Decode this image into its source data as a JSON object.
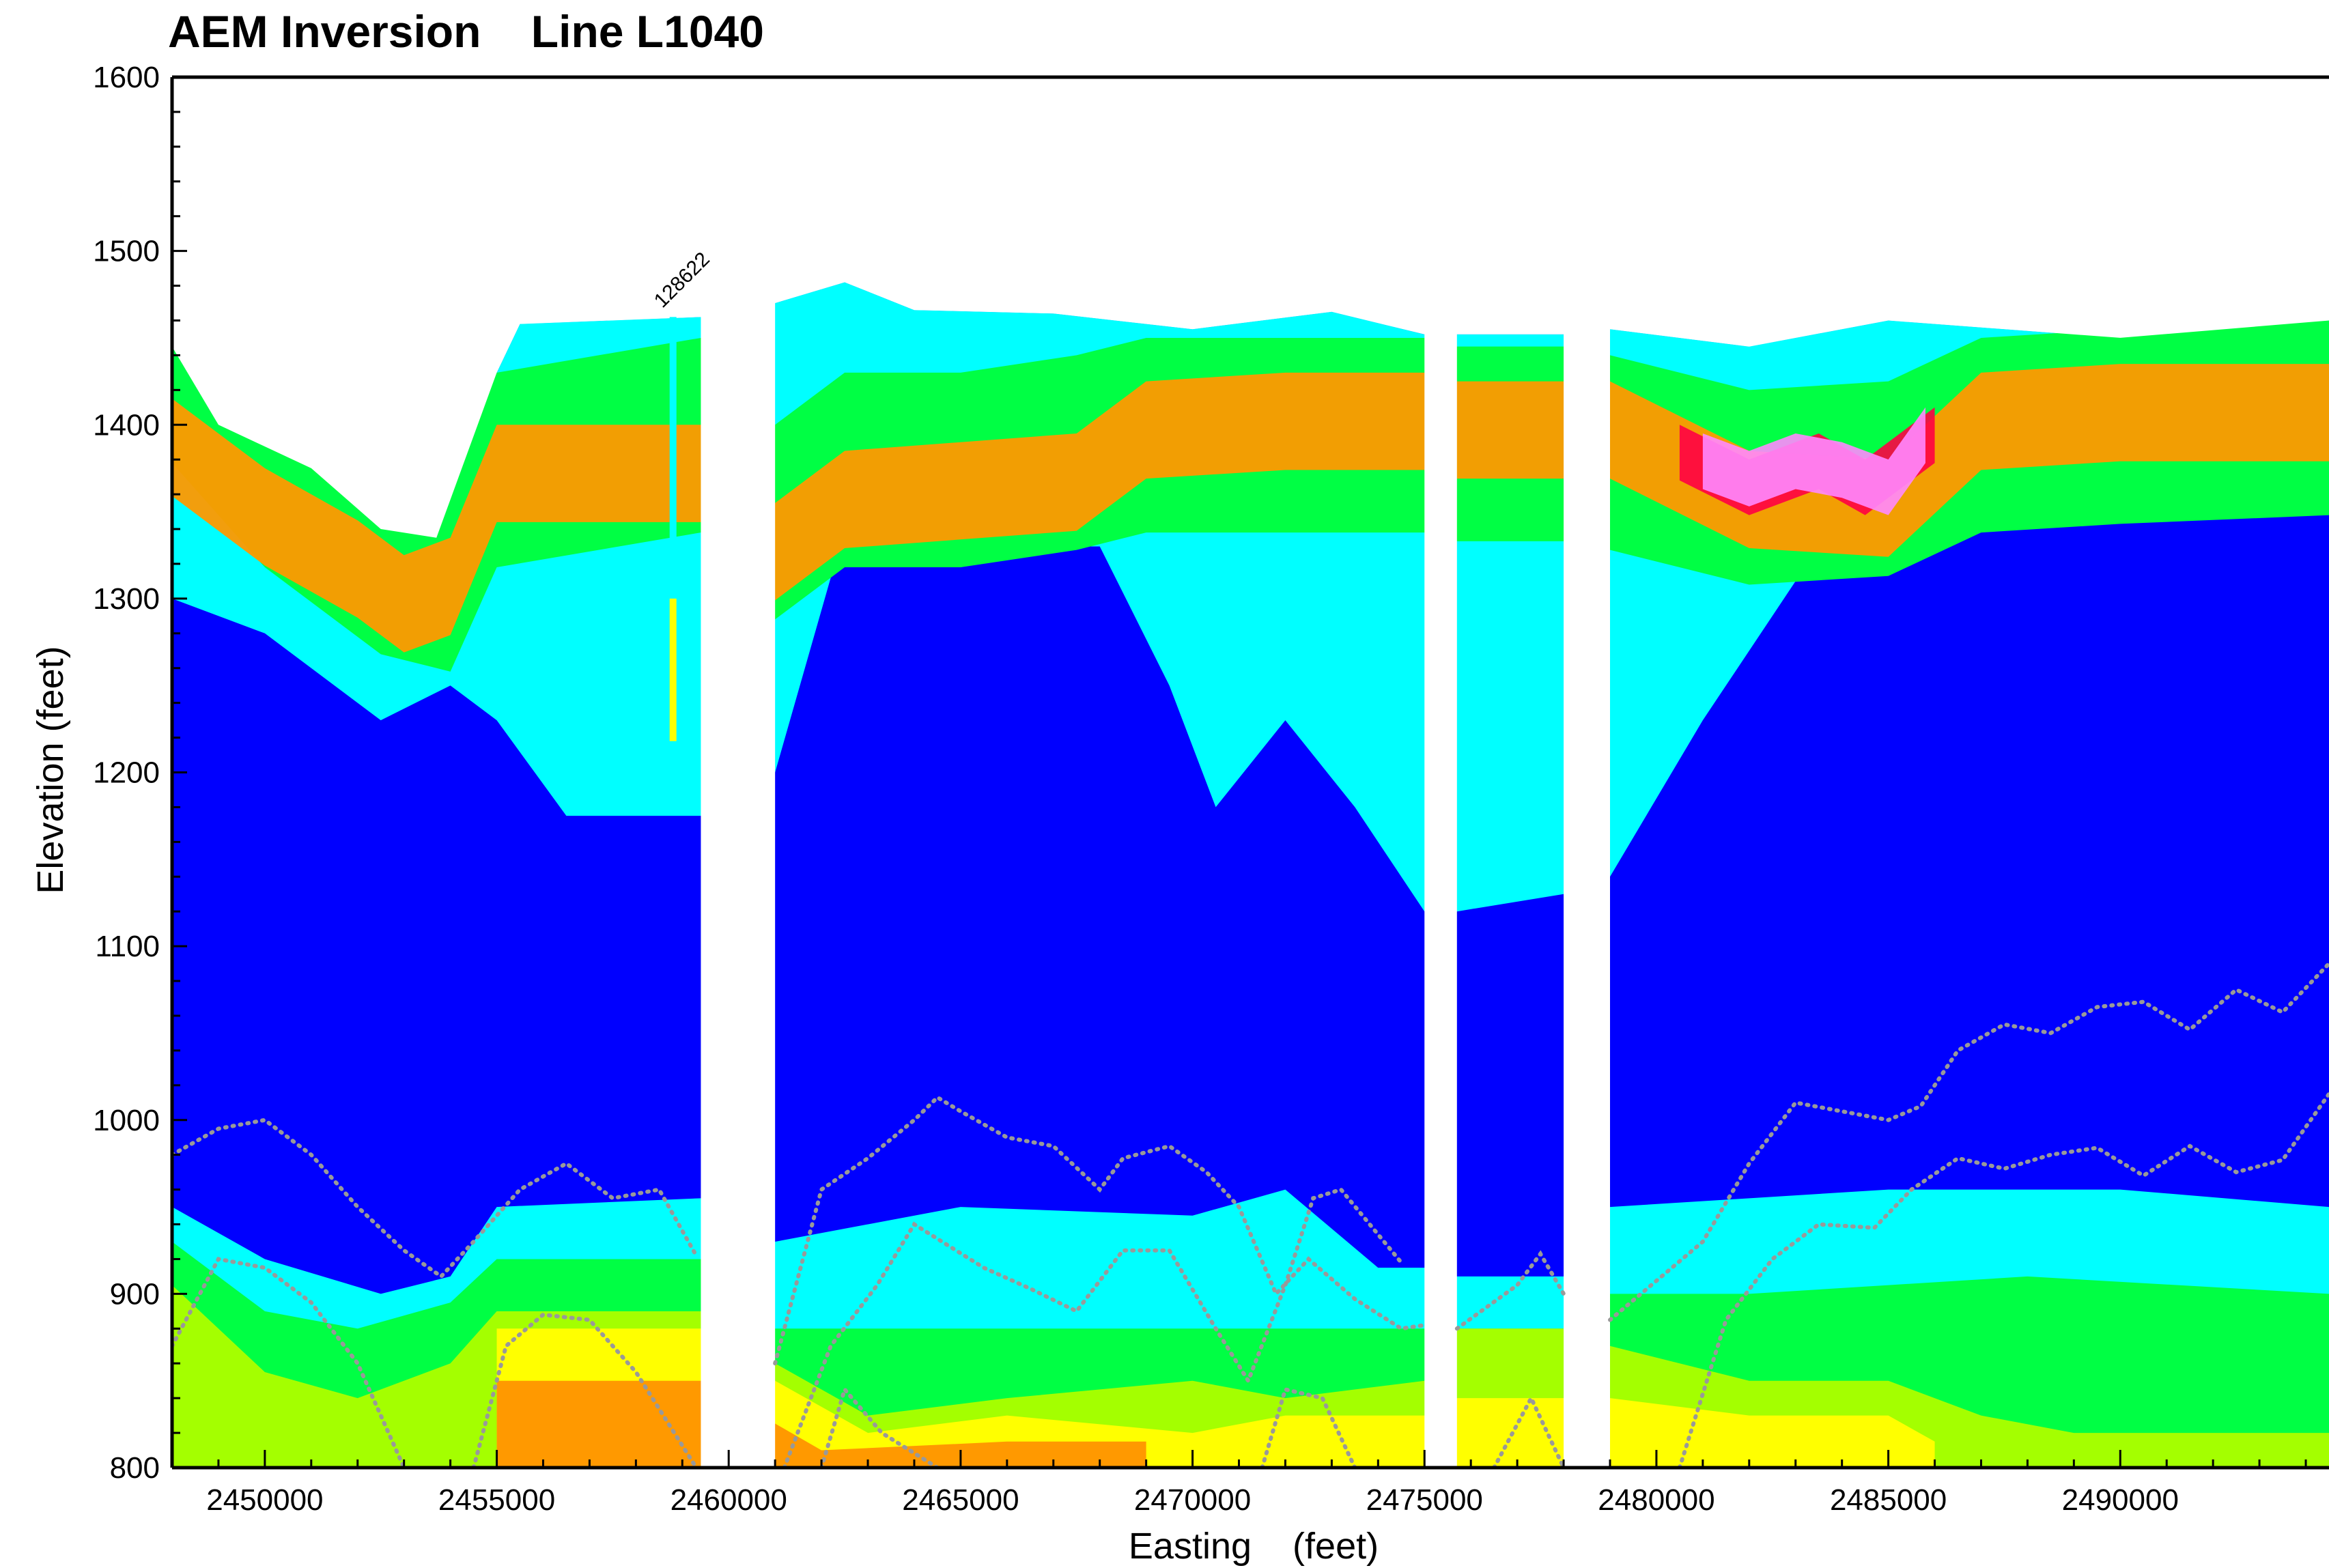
{
  "chart_data": {
    "type": "heatmap",
    "title": "AEM Inversion",
    "subtitle": "Line L1040",
    "xlabel": "Easting",
    "xunit": "(feet)",
    "ylabel": "Elevation (feet)",
    "xlim": [
      2448000,
      2494500
    ],
    "ylim": [
      800,
      1600
    ],
    "xticks": [
      2450000,
      2455000,
      2460000,
      2465000,
      2470000,
      2475000,
      2480000,
      2485000,
      2490000
    ],
    "yticks": [
      800,
      900,
      1000,
      1100,
      1200,
      1300,
      1400,
      1500,
      1600
    ],
    "annotations": [
      {
        "text": "128622",
        "x": 2458600,
        "y": 1462
      }
    ],
    "gaps": [
      [
        2459400,
        2461000
      ],
      [
        2475000,
        2475700
      ],
      [
        2478000,
        2479000
      ]
    ],
    "surface": [
      [
        2448000,
        1445
      ],
      [
        2449000,
        1400
      ],
      [
        2451000,
        1375
      ],
      [
        2452500,
        1340
      ],
      [
        2453700,
        1335
      ],
      [
        2455000,
        1430
      ],
      [
        2455500,
        1458
      ],
      [
        2459400,
        1462
      ],
      [
        2461000,
        1470
      ],
      [
        2462500,
        1482
      ],
      [
        2464000,
        1466
      ],
      [
        2467000,
        1464
      ],
      [
        2470000,
        1455
      ],
      [
        2473000,
        1465
      ],
      [
        2475000,
        1452
      ],
      [
        2475700,
        1452
      ],
      [
        2478000,
        1452
      ],
      [
        2479000,
        1455
      ],
      [
        2482000,
        1445
      ],
      [
        2485000,
        1460
      ],
      [
        2490000,
        1450
      ],
      [
        2494500,
        1460
      ]
    ],
    "layers": [
      {
        "base": [
          [
            2448000,
            1300
          ],
          [
            2450000,
            1280
          ],
          [
            2452500,
            1230
          ],
          [
            2454000,
            1250
          ],
          [
            2455000,
            1230
          ],
          [
            2456500,
            1175
          ],
          [
            2459400,
            1175
          ],
          [
            2461000,
            1200
          ],
          [
            2462500,
            1340
          ],
          [
            2465000,
            1330
          ],
          [
            2468000,
            1330
          ],
          [
            2469500,
            1250
          ],
          [
            2470500,
            1180
          ],
          [
            2472000,
            1230
          ],
          [
            2473500,
            1180
          ],
          [
            2475000,
            1120
          ],
          [
            2475700,
            1120
          ],
          [
            2478000,
            1130
          ],
          [
            2479000,
            1140
          ],
          [
            2481000,
            1230
          ],
          [
            2483000,
            1310
          ],
          [
            2485000,
            1340
          ],
          [
            2488000,
            1360
          ],
          [
            2494500,
            1370
          ]
        ]
      },
      {
        "base": [
          [
            2448000,
            1440
          ],
          [
            2450000,
            1420
          ],
          [
            2453000,
            1400
          ],
          [
            2455000,
            1420
          ],
          [
            2459400,
            1440
          ],
          [
            2461000,
            1420
          ],
          [
            2464000,
            1420
          ],
          [
            2467000,
            1440
          ],
          [
            2470000,
            1440
          ],
          [
            2473000,
            1440
          ],
          [
            2475000,
            1440
          ],
          [
            2475700,
            1430
          ],
          [
            2478000,
            1430
          ],
          [
            2479000,
            1430
          ],
          [
            2482000,
            1420
          ],
          [
            2485000,
            1430
          ],
          [
            2490000,
            1430
          ],
          [
            2494500,
            1430
          ]
        ]
      },
      {
        "base": [
          [
            2448000,
            1420
          ],
          [
            2450000,
            1360
          ],
          [
            2452500,
            1310
          ],
          [
            2454000,
            1300
          ],
          [
            2455000,
            1360
          ],
          [
            2459400,
            1380
          ],
          [
            2461000,
            1330
          ],
          [
            2462500,
            1360
          ],
          [
            2465000,
            1360
          ],
          [
            2467500,
            1370
          ],
          [
            2469000,
            1380
          ],
          [
            2472000,
            1380
          ],
          [
            2475000,
            1380
          ],
          [
            2475700,
            1375
          ],
          [
            2478000,
            1375
          ],
          [
            2479000,
            1370
          ],
          [
            2482000,
            1350
          ],
          [
            2485000,
            1355
          ],
          [
            2487000,
            1380
          ],
          [
            2490000,
            1385
          ],
          [
            2494500,
            1390
          ]
        ]
      },
      {
        "base": [
          [
            2448000,
            1380
          ],
          [
            2450000,
            1340
          ],
          [
            2452000,
            1310
          ],
          [
            2453000,
            1290
          ],
          [
            2454000,
            1300
          ],
          [
            2455000,
            1365
          ],
          [
            2459400,
            1365
          ],
          [
            2461000,
            1320
          ],
          [
            2462500,
            1350
          ],
          [
            2465000,
            1355
          ],
          [
            2467500,
            1360
          ],
          [
            2469000,
            1390
          ],
          [
            2472000,
            1395
          ],
          [
            2475000,
            1395
          ],
          [
            2475700,
            1390
          ],
          [
            2478000,
            1390
          ],
          [
            2479000,
            1390
          ],
          [
            2482000,
            1350
          ],
          [
            2485000,
            1345
          ],
          [
            2487000,
            1395
          ],
          [
            2490000,
            1400
          ],
          [
            2494500,
            1400
          ]
        ]
      },
      {
        "base": [
          [
            2480500,
            1380
          ],
          [
            2482000,
            1360
          ],
          [
            2483500,
            1375
          ],
          [
            2484500,
            1360
          ],
          [
            2486000,
            1390
          ]
        ]
      },
      {
        "base": [
          [
            2481000,
            1375
          ],
          [
            2482000,
            1365
          ],
          [
            2483000,
            1375
          ],
          [
            2484000,
            1370
          ],
          [
            2485000,
            1360
          ],
          [
            2485800,
            1390
          ]
        ]
      },
      {
        "base": [
          [
            2448000,
            950
          ],
          [
            2450000,
            920
          ],
          [
            2452500,
            900
          ],
          [
            2454000,
            910
          ],
          [
            2455000,
            950
          ],
          [
            2459400,
            955
          ],
          [
            2461000,
            930
          ],
          [
            2465000,
            950
          ],
          [
            2470000,
            945
          ],
          [
            2472000,
            960
          ],
          [
            2474000,
            915
          ],
          [
            2475000,
            915
          ],
          [
            2475700,
            910
          ],
          [
            2478000,
            910
          ],
          [
            2479000,
            950
          ],
          [
            2485000,
            960
          ],
          [
            2490000,
            960
          ],
          [
            2494500,
            950
          ]
        ]
      },
      {
        "base": [
          [
            2448000,
            930
          ],
          [
            2450000,
            890
          ],
          [
            2452000,
            880
          ],
          [
            2454000,
            895
          ],
          [
            2455000,
            920
          ],
          [
            2459400,
            920
          ],
          [
            2461000,
            880
          ],
          [
            2465000,
            880
          ],
          [
            2470000,
            880
          ],
          [
            2473000,
            880
          ],
          [
            2475000,
            880
          ],
          [
            2475700,
            880
          ],
          [
            2478000,
            880
          ],
          [
            2479000,
            900
          ],
          [
            2482000,
            900
          ],
          [
            2485000,
            905
          ],
          [
            2488000,
            910
          ],
          [
            2494500,
            900
          ]
        ]
      },
      {
        "base": [
          [
            2448000,
            905
          ],
          [
            2450000,
            855
          ],
          [
            2452000,
            840
          ],
          [
            2454000,
            860
          ],
          [
            2455000,
            890
          ],
          [
            2459400,
            890
          ],
          [
            2461000,
            860
          ],
          [
            2463000,
            830
          ],
          [
            2466000,
            840
          ],
          [
            2470000,
            850
          ],
          [
            2472000,
            840
          ],
          [
            2475000,
            850
          ],
          [
            2475700,
            880
          ],
          [
            2478000,
            880
          ],
          [
            2479000,
            870
          ],
          [
            2482000,
            850
          ],
          [
            2485000,
            850
          ],
          [
            2487000,
            830
          ],
          [
            2489000,
            820
          ],
          [
            2494500,
            820
          ]
        ]
      },
      {
        "base": [
          [
            2455000,
            880
          ],
          [
            2459400,
            880
          ],
          [
            2461000,
            850
          ],
          [
            2463000,
            820
          ],
          [
            2466000,
            830
          ],
          [
            2470000,
            820
          ],
          [
            2472000,
            830
          ],
          [
            2475000,
            830
          ],
          [
            2475700,
            840
          ],
          [
            2478000,
            840
          ],
          [
            2479000,
            840
          ],
          [
            2482000,
            830
          ],
          [
            2485000,
            830
          ],
          [
            2486000,
            815
          ]
        ]
      },
      {
        "base": [
          [
            2455000,
            850
          ],
          [
            2459400,
            850
          ],
          [
            2462000,
            810
          ],
          [
            2466000,
            815
          ],
          [
            2469000,
            815
          ]
        ]
      }
    ],
    "dotted_lines": [
      [
        [
          2448000,
          980
        ],
        [
          2449000,
          995
        ],
        [
          2450000,
          1000
        ],
        [
          2451000,
          980
        ],
        [
          2452000,
          950
        ],
        [
          2453000,
          925
        ],
        [
          2453800,
          910
        ],
        [
          2454500,
          930
        ],
        [
          2455500,
          960
        ],
        [
          2456500,
          975
        ],
        [
          2457500,
          955
        ],
        [
          2458500,
          960
        ],
        [
          2459300,
          922
        ]
      ],
      [
        [
          2448000,
          870
        ],
        [
          2449000,
          920
        ],
        [
          2450000,
          915
        ],
        [
          2451000,
          895
        ],
        [
          2452000,
          860
        ],
        [
          2453000,
          800
        ]
      ],
      [
        [
          2454500,
          800
        ],
        [
          2455200,
          870
        ],
        [
          2456000,
          888
        ],
        [
          2457000,
          885
        ],
        [
          2458000,
          855
        ],
        [
          2459300,
          800
        ]
      ],
      [
        [
          2461000,
          860
        ],
        [
          2462000,
          960
        ],
        [
          2463000,
          978
        ],
        [
          2464000,
          1000
        ],
        [
          2464500,
          1013
        ],
        [
          2465000,
          1005
        ],
        [
          2466000,
          990
        ],
        [
          2467000,
          985
        ],
        [
          2468000,
          960
        ],
        [
          2468500,
          978
        ],
        [
          2469500,
          985
        ],
        [
          2470300,
          970
        ],
        [
          2471000,
          950
        ],
        [
          2471800,
          900
        ],
        [
          2472500,
          920
        ],
        [
          2473500,
          897
        ],
        [
          2474500,
          880
        ],
        [
          2475000,
          882
        ]
      ],
      [
        [
          2461200,
          800
        ],
        [
          2462200,
          870
        ],
        [
          2463200,
          905
        ],
        [
          2464000,
          940
        ],
        [
          2464600,
          930
        ],
        [
          2465500,
          915
        ],
        [
          2466500,
          903
        ],
        [
          2467500,
          890
        ],
        [
          2468500,
          925
        ],
        [
          2469500,
          925
        ],
        [
          2470500,
          880
        ],
        [
          2471200,
          850
        ],
        [
          2472000,
          905
        ],
        [
          2472600,
          955
        ],
        [
          2473200,
          960
        ],
        [
          2474500,
          918
        ]
      ],
      [
        [
          2475700,
          880
        ],
        [
          2477000,
          905
        ],
        [
          2477500,
          923
        ],
        [
          2478000,
          900
        ]
      ],
      [
        [
          2476500,
          800
        ],
        [
          2477300,
          840
        ],
        [
          2478000,
          800
        ]
      ],
      [
        [
          2479000,
          885
        ],
        [
          2481000,
          930
        ],
        [
          2482000,
          975
        ],
        [
          2483000,
          1010
        ],
        [
          2484000,
          1005
        ],
        [
          2485000,
          1000
        ],
        [
          2485700,
          1008
        ],
        [
          2486500,
          1040
        ],
        [
          2487500,
          1055
        ],
        [
          2488500,
          1050
        ],
        [
          2489500,
          1065
        ],
        [
          2490500,
          1068
        ],
        [
          2491500,
          1052
        ],
        [
          2492500,
          1075
        ],
        [
          2493500,
          1062
        ],
        [
          2494500,
          1090
        ]
      ],
      [
        [
          2480500,
          800
        ],
        [
          2481500,
          885
        ],
        [
          2482500,
          920
        ],
        [
          2483500,
          940
        ],
        [
          2484700,
          938
        ],
        [
          2485500,
          960
        ],
        [
          2486500,
          978
        ],
        [
          2487500,
          972
        ],
        [
          2488500,
          980
        ],
        [
          2489500,
          984
        ],
        [
          2490500,
          968
        ],
        [
          2491500,
          985
        ],
        [
          2492500,
          970
        ],
        [
          2493500,
          977
        ],
        [
          2494500,
          1015
        ]
      ],
      [
        [
          2462000,
          800
        ],
        [
          2462500,
          845
        ],
        [
          2463300,
          820
        ],
        [
          2464500,
          800
        ]
      ],
      [
        [
          2471500,
          800
        ],
        [
          2472000,
          845
        ],
        [
          2472800,
          840
        ],
        [
          2473500,
          800
        ]
      ]
    ],
    "well_marker": {
      "x": 2458800,
      "top": 1462,
      "bottom": 1218
    }
  },
  "colors": {
    "background": "#ffffff",
    "scale": [
      "#0000ff",
      "#0a8df5",
      "#00ffff",
      "#00ff44",
      "#a4ff00",
      "#ffff00",
      "#ff9900",
      "#ff0044",
      "#ff88ff"
    ],
    "dotted": "#999999"
  }
}
